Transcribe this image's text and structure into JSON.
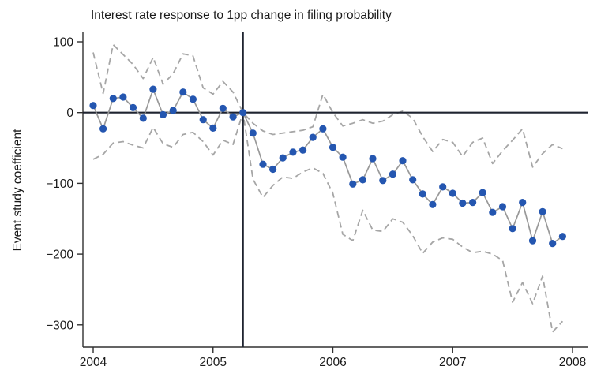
{
  "chart": {
    "title": "Interest rate response to 1pp change in filing probability",
    "y_axis_label": "Event study coefficient"
  },
  "colors": {
    "marker_blue": "#2456b0",
    "connector_gray": "#999999",
    "ci_gray": "#a6a6a6",
    "axis_color": "#303030",
    "reference_line_color": "#1f2430",
    "text_color": "#1a1a1a"
  },
  "chart_data": {
    "type": "line",
    "title": "Interest rate response to 1pp change in filing probability",
    "xlabel": "",
    "ylabel": "Event study coefficient",
    "x_ticks": [
      2004,
      2005,
      2006,
      2007,
      2008
    ],
    "y_ticks": [
      100,
      0,
      -100,
      -200,
      -300
    ],
    "xlim": [
      2003.91,
      2008.13
    ],
    "ylim": [
      -331,
      115
    ],
    "grid": false,
    "legend": "none",
    "reference_lines": {
      "horizontal_y": 0,
      "vertical_x": 2005.25
    },
    "x": [
      2004.0,
      2004.083,
      2004.167,
      2004.25,
      2004.333,
      2004.417,
      2004.5,
      2004.583,
      2004.667,
      2004.75,
      2004.833,
      2004.917,
      2005.0,
      2005.083,
      2005.167,
      2005.25,
      2005.333,
      2005.417,
      2005.5,
      2005.583,
      2005.667,
      2005.75,
      2005.833,
      2005.917,
      2006.0,
      2006.083,
      2006.167,
      2006.25,
      2006.333,
      2006.417,
      2006.5,
      2006.583,
      2006.667,
      2006.75,
      2006.833,
      2006.917,
      2007.0,
      2007.083,
      2007.167,
      2007.25,
      2007.333,
      2007.417,
      2007.5,
      2007.583,
      2007.667,
      2007.75,
      2007.833,
      2007.917
    ],
    "series": [
      {
        "name": "coefficient",
        "style": "solid line with circle markers",
        "marker_color": "#2456b0",
        "line_color": "#999999",
        "values": [
          10,
          -23,
          20,
          22,
          7,
          -8,
          33,
          -3,
          3,
          29,
          19,
          -10,
          -22,
          6,
          -6,
          0,
          -29,
          -73,
          -80,
          -64,
          -56,
          -53,
          -35,
          -23,
          -49,
          -63,
          -101,
          -95,
          -65,
          -96,
          -87,
          -68,
          -95,
          -115,
          -130,
          -105,
          -114,
          -128,
          -127,
          -113,
          -141,
          -133,
          -164,
          -127,
          -181,
          -140,
          -185,
          -175
        ]
      },
      {
        "name": "upper_95_ci",
        "style": "dashed",
        "line_color": "#a6a6a6",
        "values": [
          85,
          27,
          96,
          82,
          68,
          48,
          78,
          40,
          55,
          83,
          80,
          35,
          26,
          44,
          29,
          0,
          -15,
          -26,
          -31,
          -29,
          -27,
          -25,
          -20,
          26,
          0,
          -19,
          -15,
          -10,
          -15,
          -12,
          -3,
          2,
          -8,
          -34,
          -55,
          -38,
          -42,
          -62,
          -42,
          -36,
          -72,
          -54,
          -39,
          -23,
          -77,
          -58,
          -45,
          -51
        ]
      },
      {
        "name": "lower_95_ci",
        "style": "dashed",
        "line_color": "#a6a6a6",
        "values": [
          -66,
          -59,
          -43,
          -41,
          -46,
          -50,
          -21,
          -44,
          -49,
          -31,
          -28,
          -41,
          -60,
          -39,
          -45,
          0,
          -94,
          -120,
          -103,
          -91,
          -93,
          -84,
          -78,
          -86,
          -114,
          -172,
          -181,
          -138,
          -166,
          -168,
          -150,
          -155,
          -174,
          -199,
          -183,
          -177,
          -179,
          -190,
          -198,
          -196,
          -200,
          -209,
          -268,
          -240,
          -270,
          -231,
          -310,
          -295
        ]
      }
    ]
  }
}
